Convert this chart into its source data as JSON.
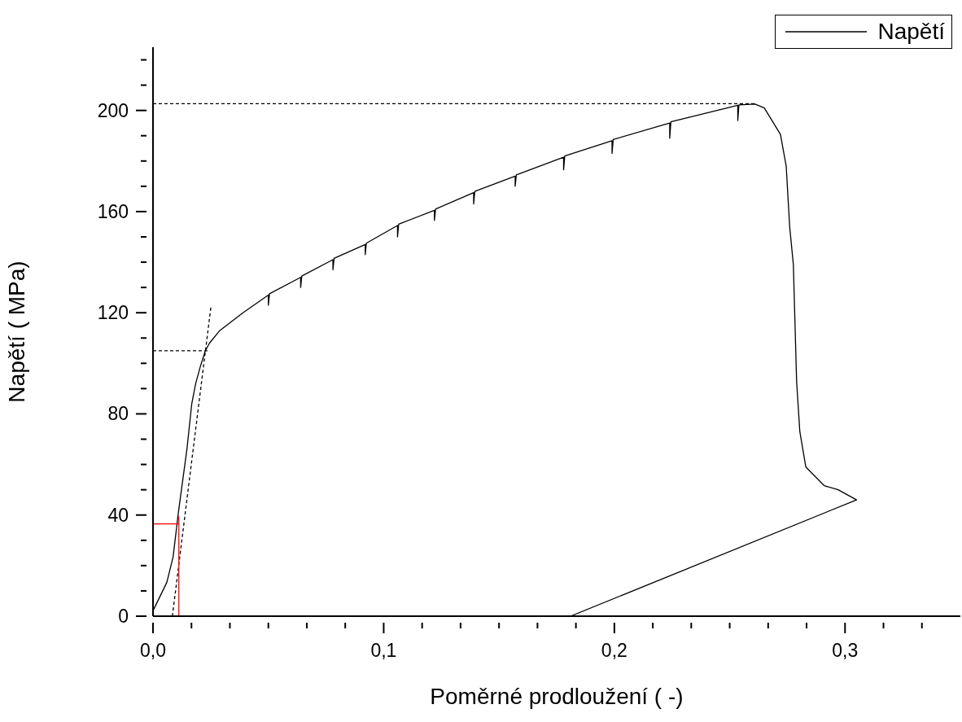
{
  "chart_data": {
    "type": "line",
    "xlabel": "Poměrné prodloužení   ( -)",
    "ylabel": "Napětí  ( MPa)",
    "xlim": [
      0,
      0.35
    ],
    "ylim": [
      0,
      225
    ],
    "xticks": [
      {
        "value": 0,
        "label": "0,0"
      },
      {
        "value": 0.01667,
        "label": null
      },
      {
        "value": 0.03333,
        "label": null
      },
      {
        "value": 0.05,
        "label": null
      },
      {
        "value": 0.06667,
        "label": null
      },
      {
        "value": 0.08333,
        "label": null
      },
      {
        "value": 0.1,
        "label": "0,1"
      },
      {
        "value": 0.11667,
        "label": null
      },
      {
        "value": 0.13333,
        "label": null
      },
      {
        "value": 0.15,
        "label": null
      },
      {
        "value": 0.16667,
        "label": null
      },
      {
        "value": 0.18333,
        "label": null
      },
      {
        "value": 0.2,
        "label": "0,2"
      },
      {
        "value": 0.21667,
        "label": null
      },
      {
        "value": 0.23333,
        "label": null
      },
      {
        "value": 0.25,
        "label": null
      },
      {
        "value": 0.26667,
        "label": null
      },
      {
        "value": 0.28333,
        "label": null
      },
      {
        "value": 0.3,
        "label": "0,3"
      },
      {
        "value": 0.31667,
        "label": null
      },
      {
        "value": 0.33333,
        "label": null
      }
    ],
    "yticks": [
      0,
      {
        "value": 10,
        "label": null
      },
      {
        "value": 20,
        "label": null
      },
      {
        "value": 30,
        "label": null
      },
      40,
      {
        "value": 50,
        "label": null
      },
      {
        "value": 60,
        "label": null
      },
      {
        "value": 70,
        "label": null
      },
      80,
      {
        "value": 90,
        "label": null
      },
      {
        "value": 100,
        "label": null
      },
      {
        "value": 110,
        "label": null
      },
      120,
      {
        "value": 130,
        "label": null
      },
      {
        "value": 140,
        "label": null
      },
      {
        "value": 150,
        "label": null
      },
      160,
      {
        "value": 170,
        "label": null
      },
      {
        "value": 180,
        "label": null
      },
      {
        "value": 190,
        "label": null
      },
      200,
      {
        "value": 210,
        "label": null
      },
      {
        "value": 220,
        "label": null
      }
    ],
    "legend": "top right",
    "marker": "none",
    "series": [
      {
        "name": "Napětí",
        "color": "#000000",
        "line_style": "solid",
        "x": [
          0.0003,
          0.006,
          0.0087,
          0.011,
          0.0147,
          0.0168,
          0.0185,
          0.0206,
          0.0227,
          0.0245,
          0.029,
          0.039,
          0.05,
          0.05,
          0.0505,
          0.064,
          0.064,
          0.0645,
          0.078,
          0.078,
          0.0785,
          0.092,
          0.092,
          0.0925,
          0.106,
          0.106,
          0.1065,
          0.122,
          0.122,
          0.1225,
          0.139,
          0.139,
          0.1395,
          0.157,
          0.157,
          0.1575,
          0.178,
          0.178,
          0.1785,
          0.199,
          0.199,
          0.1995,
          0.224,
          0.224,
          0.2245,
          0.2535,
          0.2535,
          0.254,
          0.261,
          0.265,
          0.269,
          0.272,
          0.2745,
          0.276,
          0.2776,
          0.279,
          0.2804,
          0.283,
          0.291,
          0.297,
          0.305,
          0.181
        ],
        "values": [
          2.7,
          13.4,
          23.4,
          41,
          66,
          84,
          92,
          99,
          105,
          108,
          113,
          120,
          127,
          123,
          127.5,
          134,
          130,
          134.5,
          141,
          137,
          141.5,
          147,
          143,
          147.5,
          154.5,
          150,
          155,
          160.5,
          156.5,
          161,
          167.5,
          163,
          168,
          174,
          170,
          174.5,
          181.5,
          176.5,
          182,
          188,
          183,
          188.5,
          195,
          189,
          195.5,
          202,
          196,
          202.2,
          202.5,
          201,
          195,
          190.5,
          178,
          154,
          139,
          93,
          73,
          59,
          51.6,
          50,
          46,
          0
        ]
      },
      {
        "color": "#000000",
        "line_style": "dashed",
        "x": [
          0.0084,
          0.0252
        ],
        "values": [
          0,
          123
        ]
      },
      {
        "color": "#000000",
        "line_style": "dashed",
        "x": [
          0,
          0.0245
        ],
        "values": [
          105,
          105
        ]
      },
      {
        "color": "#000000",
        "line_style": "dashed",
        "x": [
          0,
          0.261
        ],
        "values": [
          202.7,
          202.7
        ]
      },
      {
        "color": "#ff0000",
        "line_style": "solid",
        "x": [
          0,
          0.0112
        ],
        "values": [
          36.5,
          36.5
        ]
      },
      {
        "color": "#ff0000",
        "line_style": "solid",
        "x": [
          0.0112,
          0.0112
        ],
        "values": [
          0,
          39.5
        ]
      }
    ]
  }
}
